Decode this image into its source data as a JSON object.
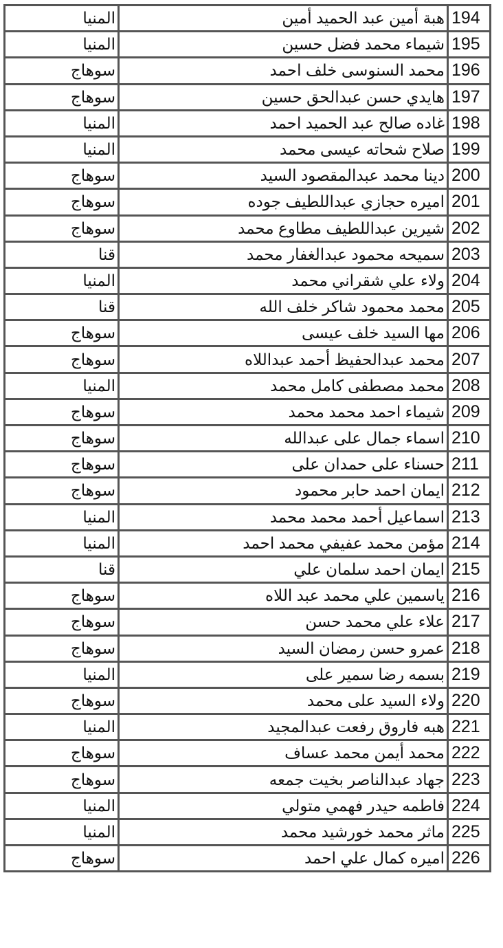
{
  "rows": [
    {
      "num": "194",
      "name": "هبة أمين عبد الحميد أمين",
      "gov": "المنيا"
    },
    {
      "num": "195",
      "name": "شيماء محمد فضل حسين",
      "gov": "المنيا"
    },
    {
      "num": "196",
      "name": "محمد السنوسى خلف احمد",
      "gov": "سوهاج"
    },
    {
      "num": "197",
      "name": "هايدي حسن عبدالحق حسين",
      "gov": "سوهاج"
    },
    {
      "num": "198",
      "name": "غاده صالح عبد الحميد احمد",
      "gov": "المنيا"
    },
    {
      "num": "199",
      "name": "صلاح شحاته عيسى محمد",
      "gov": "المنيا"
    },
    {
      "num": "200",
      "name": "دينا محمد عبدالمقصود السيد",
      "gov": "سوهاج"
    },
    {
      "num": "201",
      "name": "اميره حجازي عبداللطيف جوده",
      "gov": "سوهاج"
    },
    {
      "num": "202",
      "name": "شيرين عبداللطيف مطاوع محمد",
      "gov": "سوهاج"
    },
    {
      "num": "203",
      "name": "سميحه محمود عبدالغفار محمد",
      "gov": "قنا"
    },
    {
      "num": "204",
      "name": "ولاء علي شقراني محمد",
      "gov": "المنيا"
    },
    {
      "num": "205",
      "name": "محمد محمود شاكر خلف الله",
      "gov": "قنا"
    },
    {
      "num": "206",
      "name": "مها السيد خلف عيسى",
      "gov": "سوهاج"
    },
    {
      "num": "207",
      "name": "محمد عبدالحفيظ أحمد عبداللاه",
      "gov": "سوهاج"
    },
    {
      "num": "208",
      "name": "محمد مصطفى كامل محمد",
      "gov": "المنيا"
    },
    {
      "num": "209",
      "name": "شيماء احمد محمد محمد",
      "gov": "سوهاج"
    },
    {
      "num": "210",
      "name": "اسماء جمال على عبدالله",
      "gov": "سوهاج"
    },
    {
      "num": "211",
      "name": "حسناء على حمدان على",
      "gov": "سوهاج"
    },
    {
      "num": "212",
      "name": "ايمان احمد حابر محمود",
      "gov": "سوهاج"
    },
    {
      "num": "213",
      "name": "اسماعيل أحمد محمد محمد",
      "gov": "المنيا"
    },
    {
      "num": "214",
      "name": "مؤمن محمد عفيفي محمد احمد",
      "gov": "المنيا"
    },
    {
      "num": "215",
      "name": "ايمان احمد سلمان علي",
      "gov": "قنا"
    },
    {
      "num": "216",
      "name": "ياسمين علي محمد عبد اللاه",
      "gov": "سوهاج"
    },
    {
      "num": "217",
      "name": "علاء علي محمد حسن",
      "gov": "سوهاج"
    },
    {
      "num": "218",
      "name": "عمرو حسن رمضان السيد",
      "gov": "سوهاج"
    },
    {
      "num": "219",
      "name": "بسمه رضا سمير على",
      "gov": "المنيا"
    },
    {
      "num": "220",
      "name": "ولاء السيد على محمد",
      "gov": "سوهاج"
    },
    {
      "num": "221",
      "name": "هبه فاروق رفعت عبدالمجيد",
      "gov": "المنيا"
    },
    {
      "num": "222",
      "name": "محمد أيمن محمد عساف",
      "gov": "سوهاج"
    },
    {
      "num": "223",
      "name": "جهاد عبدالناصر بخيت جمعه",
      "gov": "سوهاج"
    },
    {
      "num": "224",
      "name": "فاطمه حيدر فهمي متولي",
      "gov": "المنيا"
    },
    {
      "num": "225",
      "name": "ماثر محمد خورشيد محمد",
      "gov": "المنيا"
    },
    {
      "num": "226",
      "name": "اميره كمال علي احمد",
      "gov": "سوهاج"
    }
  ]
}
